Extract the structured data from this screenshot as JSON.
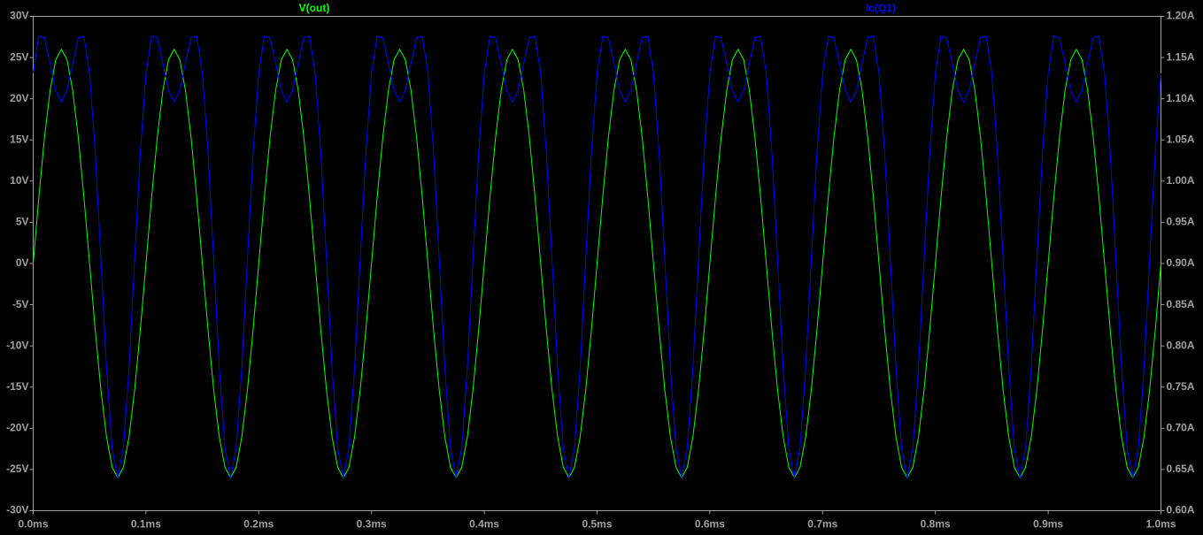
{
  "chart_data": {
    "type": "line",
    "x": [
      0,
      0.005,
      0.01,
      0.015,
      0.02,
      0.025,
      0.03,
      0.035,
      0.04,
      0.045,
      0.05,
      0.055,
      0.06,
      0.065,
      0.07,
      0.075,
      0.08,
      0.085,
      0.09,
      0.095,
      0.1,
      0.105,
      0.11,
      0.115,
      0.12,
      0.125,
      0.13,
      0.135,
      0.14,
      0.145,
      0.15,
      0.155,
      0.16,
      0.165,
      0.17,
      0.175,
      0.18,
      0.185,
      0.19,
      0.195,
      0.2,
      0.205,
      0.21,
      0.215,
      0.22,
      0.225,
      0.23,
      0.235,
      0.24,
      0.245,
      0.25,
      0.255,
      0.26,
      0.265,
      0.27,
      0.275,
      0.28,
      0.285,
      0.29,
      0.295,
      0.3,
      0.305,
      0.31,
      0.315,
      0.32,
      0.325,
      0.33,
      0.335,
      0.34,
      0.345,
      0.35,
      0.355,
      0.36,
      0.365,
      0.37,
      0.375,
      0.38,
      0.385,
      0.39,
      0.395,
      0.4,
      0.405,
      0.41,
      0.415,
      0.42,
      0.425,
      0.43,
      0.435,
      0.44,
      0.445,
      0.45,
      0.455,
      0.46,
      0.465,
      0.47,
      0.475,
      0.48,
      0.485,
      0.49,
      0.495,
      0.5,
      0.505,
      0.51,
      0.515,
      0.52,
      0.525,
      0.53,
      0.535,
      0.54,
      0.545,
      0.55,
      0.555,
      0.56,
      0.565,
      0.57,
      0.575,
      0.58,
      0.585,
      0.59,
      0.595,
      0.6,
      0.605,
      0.61,
      0.615,
      0.62,
      0.625,
      0.63,
      0.635,
      0.64,
      0.645,
      0.65,
      0.655,
      0.66,
      0.665,
      0.67,
      0.675,
      0.68,
      0.685,
      0.69,
      0.695,
      0.7,
      0.705,
      0.71,
      0.715,
      0.72,
      0.725,
      0.73,
      0.735,
      0.74,
      0.745,
      0.75,
      0.755,
      0.76,
      0.765,
      0.77,
      0.775,
      0.78,
      0.785,
      0.79,
      0.795,
      0.8,
      0.805,
      0.81,
      0.815,
      0.82,
      0.825,
      0.83,
      0.835,
      0.84,
      0.845,
      0.85,
      0.855,
      0.86,
      0.865,
      0.87,
      0.875,
      0.88,
      0.885,
      0.89,
      0.895,
      0.9,
      0.905,
      0.91,
      0.915,
      0.92,
      0.925,
      0.93,
      0.935,
      0.94,
      0.945,
      0.95,
      0.955,
      0.96,
      0.965,
      0.97,
      0.975,
      0.98,
      0.985,
      0.99,
      0.995,
      1
    ],
    "series": [
      {
        "name": "V(out)",
        "color": "#00ff00",
        "axis": "y",
        "values": [
          0,
          8.03,
          15.29,
          21.03,
          24.73,
          26,
          24.73,
          21.03,
          15.29,
          8.03,
          0,
          -8.03,
          -15.29,
          -21.03,
          -24.73,
          -26,
          -24.73,
          -21.03,
          -15.29,
          -8.03,
          0,
          8.03,
          15.29,
          21.03,
          24.73,
          26,
          24.73,
          21.03,
          15.29,
          8.03,
          0,
          -8.03,
          -15.29,
          -21.03,
          -24.73,
          -26,
          -24.73,
          -21.03,
          -15.29,
          -8.03,
          0,
          8.03,
          15.29,
          21.03,
          24.73,
          26,
          24.73,
          21.03,
          15.29,
          8.03,
          0,
          -8.03,
          -15.29,
          -21.03,
          -24.73,
          -26,
          -24.73,
          -21.03,
          -15.29,
          -8.03,
          0,
          8.03,
          15.29,
          21.03,
          24.73,
          26,
          24.73,
          21.03,
          15.29,
          8.03,
          0,
          -8.03,
          -15.29,
          -21.03,
          -24.73,
          -26,
          -24.73,
          -21.03,
          -15.29,
          -8.03,
          0,
          8.03,
          15.29,
          21.03,
          24.73,
          26,
          24.73,
          21.03,
          15.29,
          8.03,
          0,
          -8.03,
          -15.29,
          -21.03,
          -24.73,
          -26,
          -24.73,
          -21.03,
          -15.29,
          -8.03,
          0,
          8.03,
          15.29,
          21.03,
          24.73,
          26,
          24.73,
          21.03,
          15.29,
          8.03,
          0,
          -8.03,
          -15.29,
          -21.03,
          -24.73,
          -26,
          -24.73,
          -21.03,
          -15.29,
          -8.03,
          0,
          8.03,
          15.29,
          21.03,
          24.73,
          26,
          24.73,
          21.03,
          15.29,
          8.03,
          0,
          -8.03,
          -15.29,
          -21.03,
          -24.73,
          -26,
          -24.73,
          -21.03,
          -15.29,
          -8.03,
          0,
          8.03,
          15.29,
          21.03,
          24.73,
          26,
          24.73,
          21.03,
          15.29,
          8.03,
          0,
          -8.03,
          -15.29,
          -21.03,
          -24.73,
          -26,
          -24.73,
          -21.03,
          -15.29,
          -8.03,
          0,
          8.03,
          15.29,
          21.03,
          24.73,
          26,
          24.73,
          21.03,
          15.29,
          8.03,
          0,
          -8.03,
          -15.29,
          -21.03,
          -24.73,
          -26,
          -24.73,
          -21.03,
          -15.29,
          -8.03,
          0,
          8.03,
          15.29,
          21.03,
          24.73,
          26,
          24.73,
          21.03,
          15.29,
          8.03,
          0,
          -8.03,
          -15.29,
          -21.03,
          -24.73,
          -26,
          -24.73,
          -21.03,
          -15.29,
          -8.03,
          0
        ]
      },
      {
        "name": "Ic(Q1)",
        "color": "#0000ff",
        "axis": "y2",
        "values": [
          1.131,
          1.176,
          1.174,
          1.143,
          1.11,
          1.096,
          1.11,
          1.143,
          1.174,
          1.176,
          1.131,
          1.035,
          0.906,
          0.774,
          0.676,
          0.64,
          0.676,
          0.774,
          0.906,
          1.035,
          1.131,
          1.176,
          1.174,
          1.143,
          1.11,
          1.096,
          1.11,
          1.143,
          1.174,
          1.176,
          1.131,
          1.035,
          0.906,
          0.774,
          0.676,
          0.64,
          0.676,
          0.774,
          0.906,
          1.035,
          1.131,
          1.176,
          1.174,
          1.143,
          1.11,
          1.096,
          1.11,
          1.143,
          1.174,
          1.176,
          1.131,
          1.035,
          0.906,
          0.774,
          0.676,
          0.64,
          0.676,
          0.774,
          0.906,
          1.035,
          1.131,
          1.176,
          1.174,
          1.143,
          1.11,
          1.096,
          1.11,
          1.143,
          1.174,
          1.176,
          1.131,
          1.035,
          0.906,
          0.774,
          0.676,
          0.64,
          0.676,
          0.774,
          0.906,
          1.035,
          1.131,
          1.176,
          1.174,
          1.143,
          1.11,
          1.096,
          1.11,
          1.143,
          1.174,
          1.176,
          1.131,
          1.035,
          0.906,
          0.774,
          0.676,
          0.64,
          0.676,
          0.774,
          0.906,
          1.035,
          1.131,
          1.176,
          1.174,
          1.143,
          1.11,
          1.096,
          1.11,
          1.143,
          1.174,
          1.176,
          1.131,
          1.035,
          0.906,
          0.774,
          0.676,
          0.64,
          0.676,
          0.774,
          0.906,
          1.035,
          1.131,
          1.176,
          1.174,
          1.143,
          1.11,
          1.096,
          1.11,
          1.143,
          1.174,
          1.176,
          1.131,
          1.035,
          0.906,
          0.774,
          0.676,
          0.64,
          0.676,
          0.774,
          0.906,
          1.035,
          1.131,
          1.176,
          1.174,
          1.143,
          1.11,
          1.096,
          1.11,
          1.143,
          1.174,
          1.176,
          1.131,
          1.035,
          0.906,
          0.774,
          0.676,
          0.64,
          0.676,
          0.774,
          0.906,
          1.035,
          1.131,
          1.176,
          1.174,
          1.143,
          1.11,
          1.096,
          1.11,
          1.143,
          1.174,
          1.176,
          1.131,
          1.035,
          0.906,
          0.774,
          0.676,
          0.64,
          0.676,
          0.774,
          0.906,
          1.035,
          1.131,
          1.176,
          1.174,
          1.143,
          1.11,
          1.096,
          1.11,
          1.143,
          1.174,
          1.176,
          1.131,
          1.035,
          0.906,
          0.774,
          0.676,
          0.64,
          0.676,
          0.774,
          0.906,
          1.035,
          1.131
        ]
      }
    ],
    "xlim": [
      0,
      1
    ],
    "xticks": [
      {
        "value": 0,
        "label": "0.0ms"
      },
      {
        "value": 0.1,
        "label": "0.1ms"
      },
      {
        "value": 0.2,
        "label": "0.2ms"
      },
      {
        "value": 0.3,
        "label": "0.3ms"
      },
      {
        "value": 0.4,
        "label": "0.4ms"
      },
      {
        "value": 0.5,
        "label": "0.5ms"
      },
      {
        "value": 0.6,
        "label": "0.6ms"
      },
      {
        "value": 0.7,
        "label": "0.7ms"
      },
      {
        "value": 0.8,
        "label": "0.8ms"
      },
      {
        "value": 0.9,
        "label": "0.9ms"
      },
      {
        "value": 1,
        "label": "1.0ms"
      }
    ],
    "ylim": [
      -30,
      30
    ],
    "yticks": [
      {
        "value": 30,
        "label": "30V"
      },
      {
        "value": 25,
        "label": "25V"
      },
      {
        "value": 20,
        "label": "20V"
      },
      {
        "value": 15,
        "label": "15V"
      },
      {
        "value": 10,
        "label": "10V"
      },
      {
        "value": 5,
        "label": "5V"
      },
      {
        "value": 0,
        "label": "0V"
      },
      {
        "value": -5,
        "label": "-5V"
      },
      {
        "value": -10,
        "label": "-10V"
      },
      {
        "value": -15,
        "label": "-15V"
      },
      {
        "value": -20,
        "label": "-20V"
      },
      {
        "value": -25,
        "label": "-25V"
      },
      {
        "value": -30,
        "label": "-30V"
      }
    ],
    "y2lim": [
      0.6,
      1.2
    ],
    "y2ticks": [
      {
        "value": 1.2,
        "label": "1.20A"
      },
      {
        "value": 1.15,
        "label": "1.15A"
      },
      {
        "value": 1.1,
        "label": "1.10A"
      },
      {
        "value": 1.05,
        "label": "1.05A"
      },
      {
        "value": 1,
        "label": "1.00A"
      },
      {
        "value": 0.95,
        "label": "0.95A"
      },
      {
        "value": 0.9,
        "label": "0.90A"
      },
      {
        "value": 0.85,
        "label": "0.85A"
      },
      {
        "value": 0.8,
        "label": "0.80A"
      },
      {
        "value": 0.75,
        "label": "0.75A"
      },
      {
        "value": 0.7,
        "label": "0.70A"
      },
      {
        "value": 0.65,
        "label": "0.65A"
      },
      {
        "value": 0.6,
        "label": "0.60A"
      }
    ]
  }
}
